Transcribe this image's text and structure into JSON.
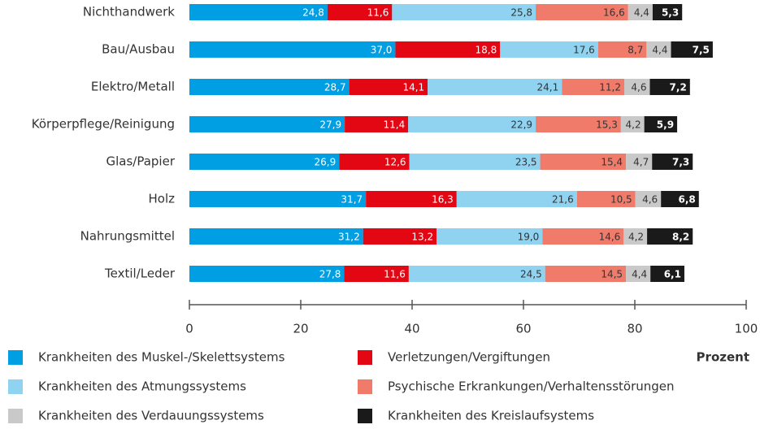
{
  "chart_data": {
    "type": "stacked_bar_horizontal",
    "categories": [
      "Nichthandwerk",
      "Bau/Ausbau",
      "Elektro/Metall",
      "Körperpflege/Reinigung",
      "Glas/Papier",
      "Holz",
      "Nahrungsmittel",
      "Textil/Leder"
    ],
    "x_label": "Prozent",
    "xlim": [
      0,
      100
    ],
    "xticks": [
      0,
      20,
      40,
      60,
      80,
      100
    ],
    "series": [
      {
        "name": "Krankheiten des Muskel-/Skelettsystems",
        "color": "#009fe3",
        "label_color": "#ffffff",
        "values": [
          24.8,
          37.0,
          28.7,
          27.9,
          26.9,
          31.7,
          31.2,
          27.8
        ],
        "value_labels": [
          "24,8",
          "37,0",
          "28,7",
          "27,9",
          "26,9",
          "31,7",
          "31,2",
          "27,8"
        ]
      },
      {
        "name": "Verletzungen/Vergiftungen",
        "color": "#e30613",
        "label_color": "#ffffff",
        "values": [
          11.6,
          18.8,
          14.1,
          11.4,
          12.6,
          16.3,
          13.2,
          11.6
        ],
        "value_labels": [
          "11,6",
          "18,8",
          "14,1",
          "11,4",
          "12,6",
          "16,3",
          "13,2",
          "11,6"
        ]
      },
      {
        "name": "Krankheiten des Atmungssystems",
        "color": "#8fd3f1",
        "label_color": "#333333",
        "values": [
          25.8,
          17.6,
          24.1,
          22.9,
          23.5,
          21.6,
          19.0,
          24.5
        ],
        "value_labels": [
          "25,8",
          "17,6",
          "24,1",
          "22,9",
          "23,5",
          "21,6",
          "19,0",
          "24,5"
        ]
      },
      {
        "name": "Psychische Erkrankungen/Verhaltensstörungen",
        "color": "#f07b6b",
        "label_color": "#333333",
        "values": [
          16.6,
          8.7,
          11.2,
          15.3,
          15.4,
          10.5,
          14.6,
          14.5
        ],
        "value_labels": [
          "16,6",
          "8,7",
          "11,2",
          "15,3",
          "15,4",
          "10,5",
          "14,6",
          "14,5"
        ]
      },
      {
        "name": "Krankheiten des Verdauungssystems",
        "color": "#c9c9c9",
        "label_color": "#333333",
        "values": [
          4.4,
          4.4,
          4.6,
          4.2,
          4.7,
          4.6,
          4.2,
          4.4
        ],
        "value_labels": [
          "4,4",
          "4,4",
          "4,6",
          "4,2",
          "4,7",
          "4,6",
          "4,2",
          "4,4"
        ]
      },
      {
        "name": "Krankheiten des Kreislaufsystems",
        "color": "#1a1a1a",
        "label_color": "#ffffff",
        "values": [
          5.3,
          7.5,
          7.2,
          5.9,
          7.3,
          6.8,
          8.2,
          6.1
        ],
        "value_labels": [
          "5,3",
          "7,5",
          "7,2",
          "5,9",
          "7,3",
          "6,8",
          "8,2",
          "6,1"
        ]
      }
    ]
  }
}
